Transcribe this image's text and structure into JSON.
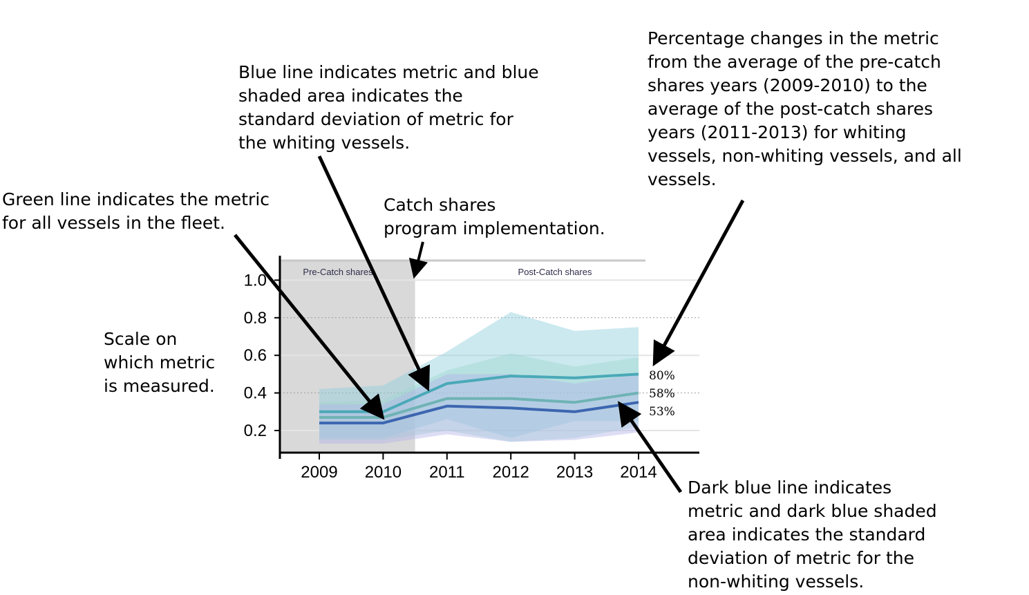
{
  "annotations": {
    "blue_line": "Blue line indicates metric and blue\nshaded area indicates the\nstandard deviation of metric for\nthe whiting vessels.",
    "percentage": "Percentage changes in the metric\nfrom the average of the pre-catch\nshares years (2009-2010) to the\naverage of the post-catch shares\nyears (2011-2013) for whiting\nvessels, non-whiting vessels, and all\nvessels.",
    "green_line": "Green line indicates the metric\nfor all vessels in the fleet.",
    "catch_shares": "Catch shares\nprogram implementation.",
    "scale": "Scale on\nwhich metric\nis measured.",
    "dark_blue_line": "Dark blue line indicates\nmetric and dark blue shaded\narea indicates the standard\ndeviation of metric for the\nnon-whiting vessels."
  },
  "chart_data": {
    "type": "line",
    "x": [
      2009,
      2010,
      2011,
      2012,
      2013,
      2014
    ],
    "ylim": [
      0.1,
      1.1
    ],
    "y_ticks": [
      "0.2",
      "0.4",
      "0.6",
      "0.8",
      "1.0"
    ],
    "x_ticks": [
      "2009",
      "2010",
      "2011",
      "2012",
      "2013",
      "2014"
    ],
    "regions": [
      {
        "label": "Pre-Catch shares",
        "from": 2008.4,
        "to": 2010.5
      },
      {
        "label": "Post-Catch shares",
        "from": 2010.5,
        "to": 2014.1
      }
    ],
    "series": [
      {
        "values": [
          0.3,
          0.3,
          0.45,
          0.49,
          0.48,
          0.5
        ],
        "upper": [
          0.42,
          0.44,
          0.62,
          0.83,
          0.73,
          0.75
        ],
        "lower": [
          0.16,
          0.16,
          0.26,
          0.16,
          0.25,
          0.25
        ],
        "color": "#4aa9b8",
        "band_color": "#8ccfdc"
      },
      {
        "values": [
          0.27,
          0.27,
          0.37,
          0.37,
          0.35,
          0.4
        ],
        "upper": [
          0.35,
          0.36,
          0.52,
          0.61,
          0.54,
          0.59
        ],
        "lower": [
          0.15,
          0.15,
          0.2,
          0.14,
          0.16,
          0.22
        ],
        "color": "#6fb3b5",
        "band_color": "#9fd6cf"
      },
      {
        "values": [
          0.24,
          0.24,
          0.33,
          0.32,
          0.3,
          0.35
        ],
        "upper": [
          0.34,
          0.34,
          0.5,
          0.5,
          0.45,
          0.5
        ],
        "lower": [
          0.13,
          0.13,
          0.18,
          0.14,
          0.15,
          0.19
        ],
        "color": "#3d66b0",
        "band_color": "#b3b6e8"
      }
    ],
    "percent_labels": [
      "80%",
      "58%",
      "53%"
    ]
  }
}
